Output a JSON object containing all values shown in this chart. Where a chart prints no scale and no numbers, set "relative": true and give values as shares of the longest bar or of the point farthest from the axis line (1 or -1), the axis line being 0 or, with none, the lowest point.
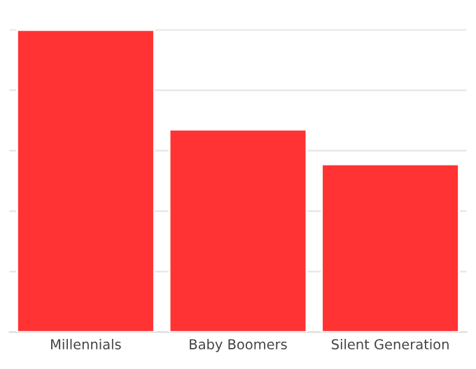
{
  "chart_data": {
    "type": "bar",
    "categories": [
      "Millennials",
      "Baby Boomers",
      "Silent Generation"
    ],
    "values": [
      1,
      0.67,
      0.555
    ],
    "color": "#ff3333",
    "relative": true,
    "grid": "y",
    "legend": false
  }
}
